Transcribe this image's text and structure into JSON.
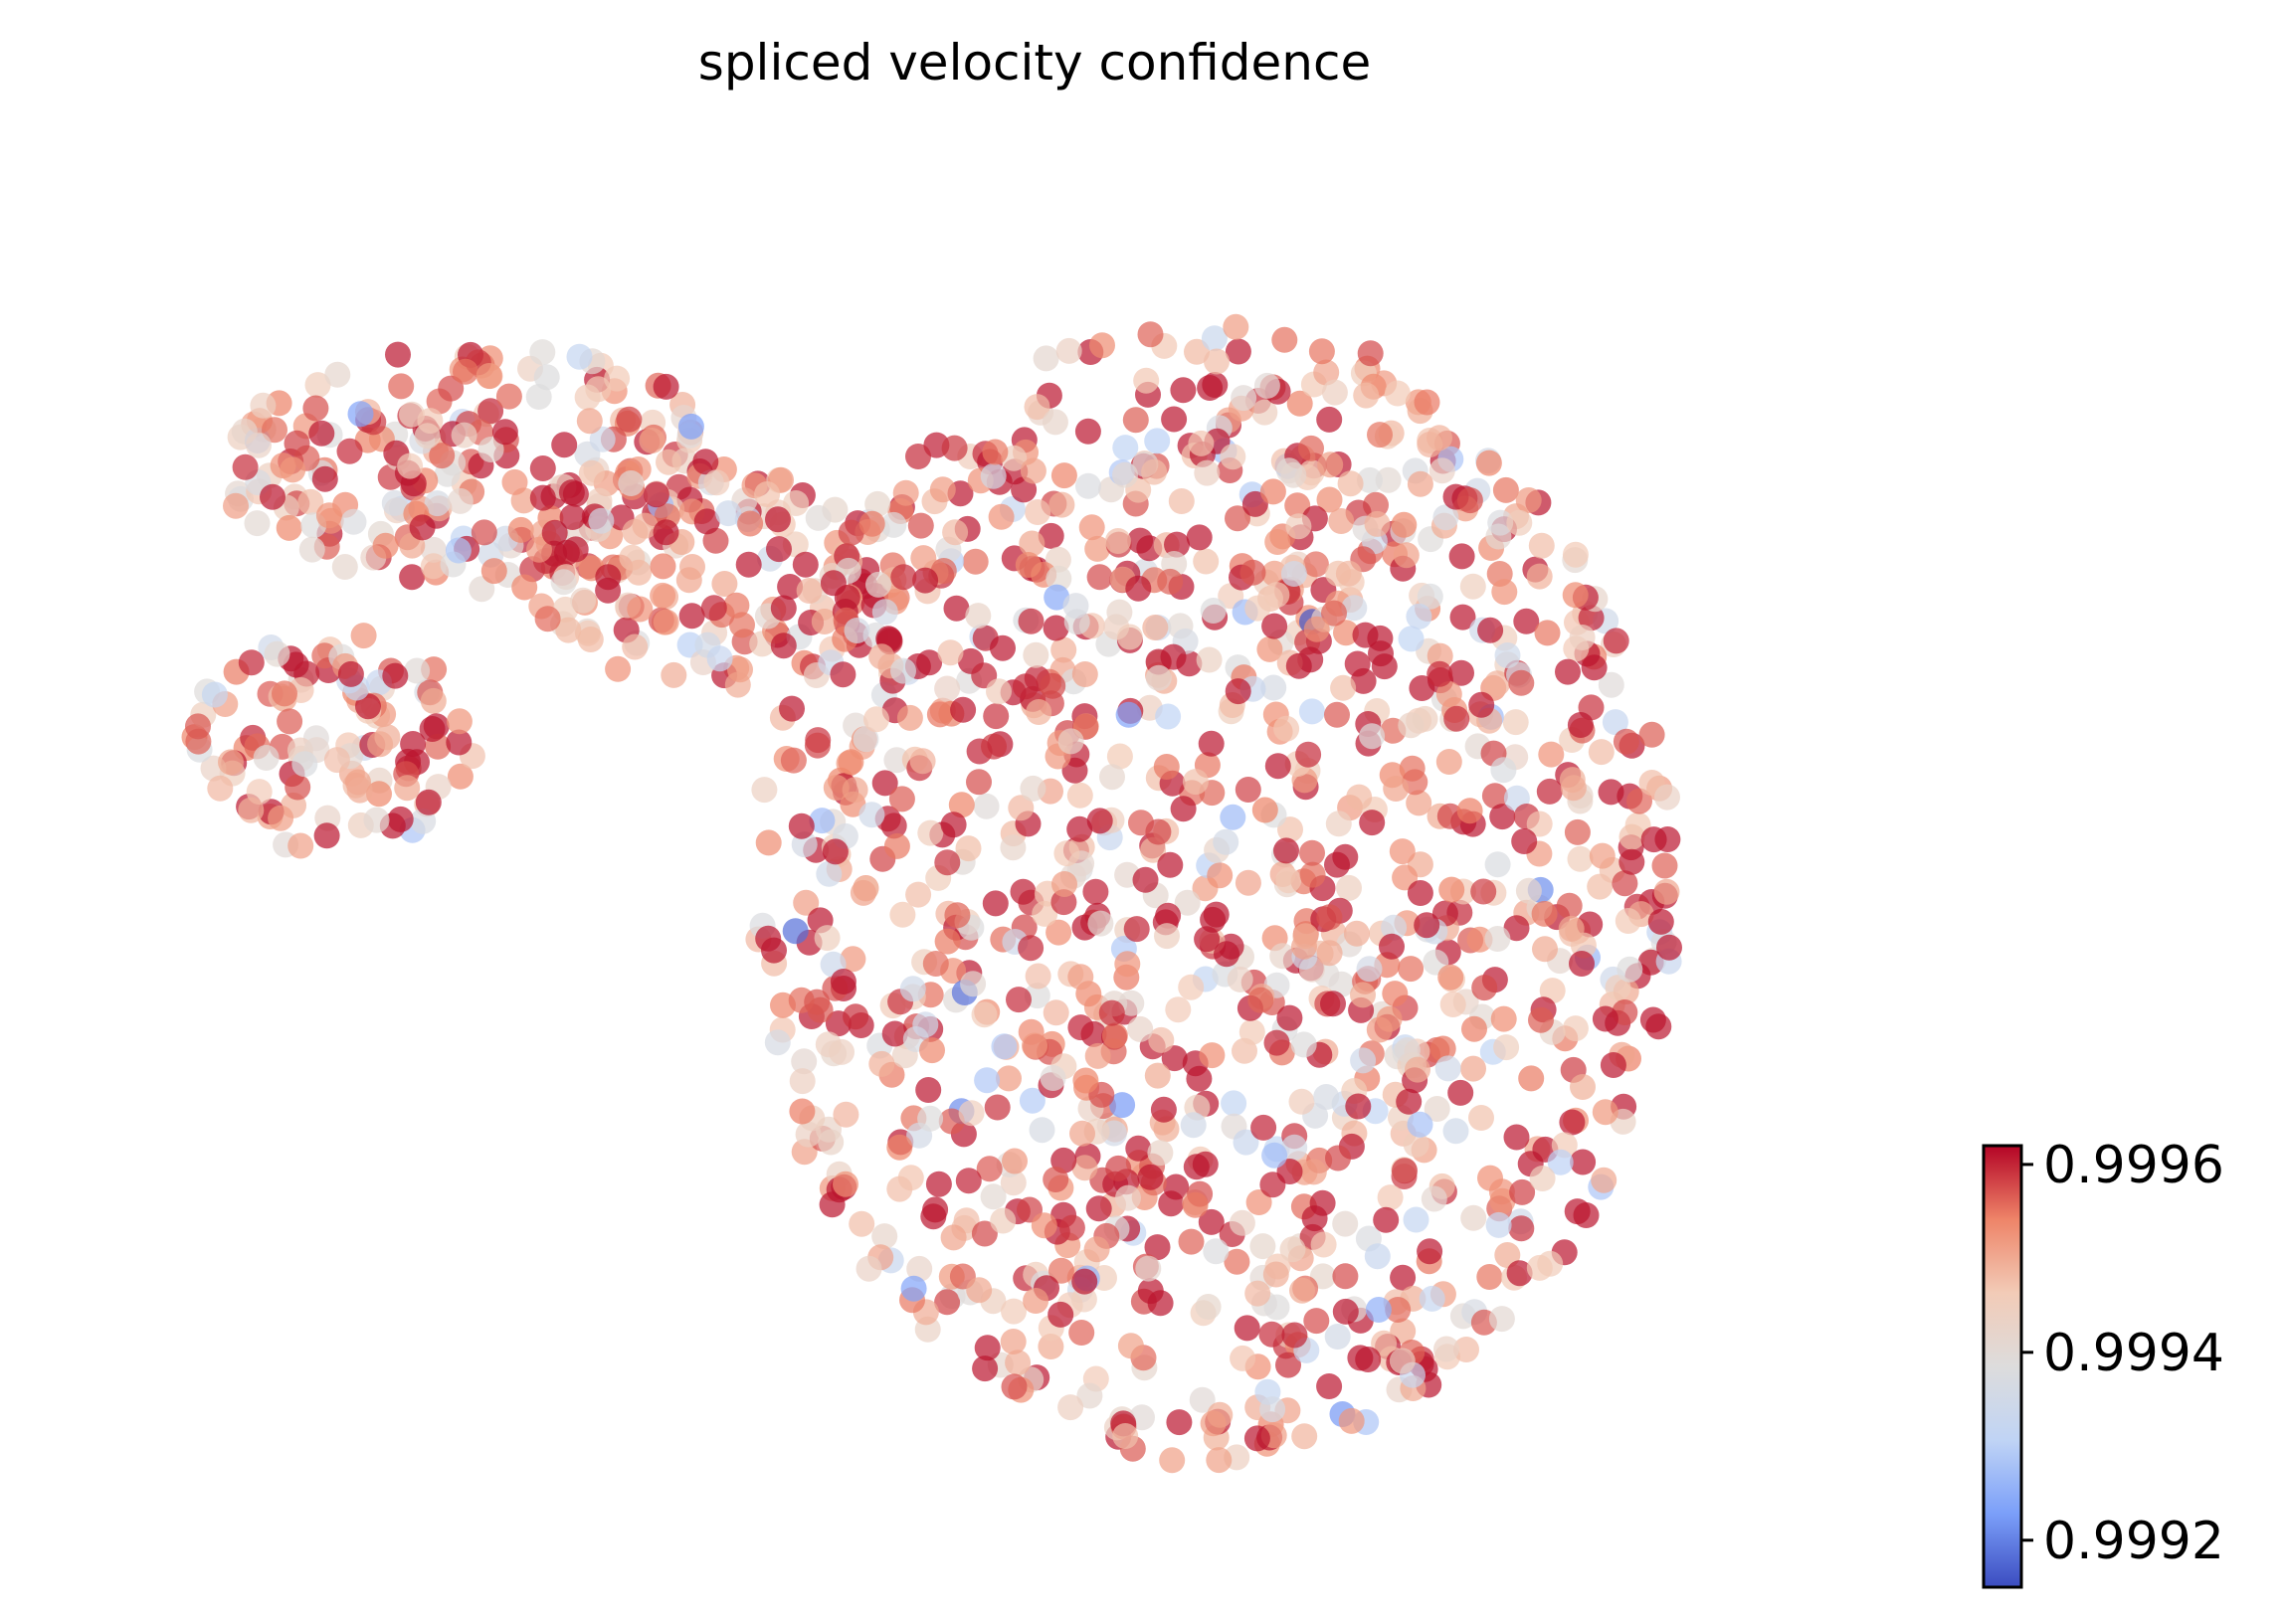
{
  "chart_data": {
    "type": "scatter",
    "title": "spliced velocity confidence",
    "xlabel": "",
    "ylabel": "",
    "axes_visible": false,
    "grid": false,
    "colormap": "coolwarm",
    "color_stops": [
      "#3b4cc0",
      "#7b9ff9",
      "#c0d4f5",
      "#dddcdc",
      "#f2cbb7",
      "#ee8468",
      "#b40426"
    ],
    "color_range": [
      0.99915,
      0.99962
    ],
    "colorbar": {
      "placement": "bottom-right",
      "ticks": [
        {
          "value": 0.9992,
          "label": "0.9992"
        },
        {
          "value": 0.9994,
          "label": "0.9994"
        },
        {
          "value": 0.9996,
          "label": "0.9996"
        }
      ]
    },
    "point_alpha": 0.7,
    "point_count": 1750,
    "regions": [
      {
        "name": "upper-left arm",
        "cx": 0.2,
        "cy": 0.78,
        "rx": 0.14,
        "ry": 0.09,
        "n": 230
      },
      {
        "name": "arm connector",
        "cx": 0.33,
        "cy": 0.7,
        "rx": 0.1,
        "ry": 0.08,
        "n": 130
      },
      {
        "name": "left lobe",
        "cx": 0.12,
        "cy": 0.58,
        "rx": 0.08,
        "ry": 0.08,
        "n": 110
      },
      {
        "name": "main body",
        "cx": 0.6,
        "cy": 0.47,
        "rx": 0.25,
        "ry": 0.42,
        "n": 1280
      }
    ],
    "value_distribution": {
      "mean": 0.99952,
      "sd": 0.00011,
      "min": 0.99916,
      "max": 0.99961
    }
  }
}
